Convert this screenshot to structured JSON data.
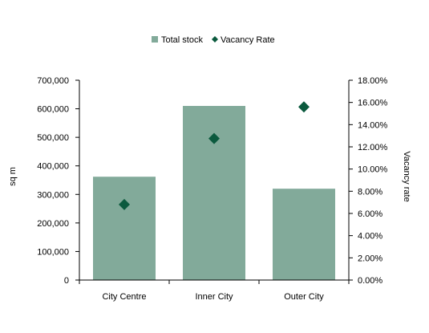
{
  "chart_data": {
    "type": "bar",
    "categories": [
      "City Centre",
      "Inner City",
      "Outer City"
    ],
    "series": [
      {
        "name": "Total stock",
        "type": "bar",
        "axis": "left",
        "values": [
          362000,
          610000,
          320000
        ],
        "color": "#82aa9a"
      },
      {
        "name": "Vacancy Rate",
        "type": "scatter",
        "marker": "diamond",
        "axis": "right",
        "values": [
          0.068,
          0.1275,
          0.156
        ],
        "color": "#0b5a3e"
      }
    ],
    "ylabel": "sq m",
    "y2label": "Vacancy rate",
    "ylim": [
      0,
      700000
    ],
    "y2lim": [
      0,
      0.18
    ],
    "yticks": [
      "0",
      "100,000",
      "200,000",
      "300,000",
      "400,000",
      "500,000",
      "600,000",
      "700,000"
    ],
    "y2ticks": [
      "0.00%",
      "2.00%",
      "4.00%",
      "6.00%",
      "8.00%",
      "10.00%",
      "12.00%",
      "14.00%",
      "16.00%",
      "18.00%"
    ],
    "legend": "top-center",
    "grid": false
  }
}
